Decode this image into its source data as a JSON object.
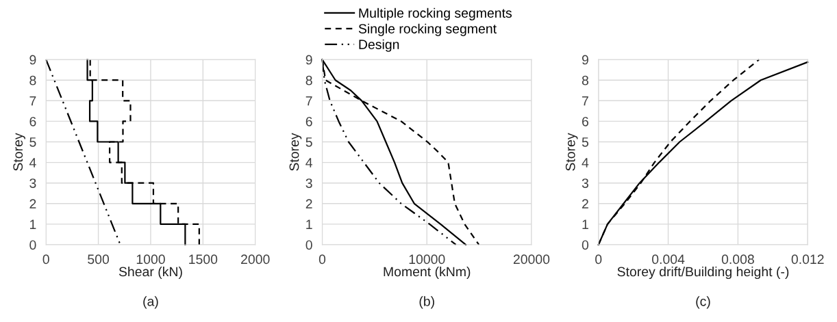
{
  "chart_data": [
    {
      "type": "line",
      "xlabel": "Shear (kN)",
      "ylabel": "Storey",
      "xlim": [
        0,
        2000
      ],
      "xticks": [
        0,
        500,
        1000,
        1500,
        2000
      ],
      "ylim": [
        0,
        9
      ],
      "yticks": [
        0,
        1,
        2,
        3,
        4,
        5,
        6,
        7,
        8,
        9
      ],
      "grid": true,
      "annotations": [
        "(a)"
      ],
      "series": [
        {
          "color": "#000000",
          "line_style": "solid",
          "x": [
            395,
            395,
            443,
            443,
            418,
            418,
            492,
            492,
            690,
            690,
            754,
            754,
            826,
            826,
            1094,
            1094,
            1330,
            1330
          ],
          "values": [
            9,
            8,
            8,
            7,
            7,
            6,
            6,
            5,
            5,
            4,
            4,
            3,
            3,
            2,
            2,
            1,
            1,
            0
          ]
        },
        {
          "color": "#000000",
          "line_style": "dashed",
          "x": [
            422,
            422,
            733,
            733,
            807,
            807,
            735,
            735,
            608,
            608,
            724,
            724,
            1026,
            1026,
            1263,
            1263,
            1464,
            1464
          ],
          "values": [
            9,
            8,
            8,
            7,
            7,
            6,
            6,
            5,
            5,
            4,
            4,
            3,
            3,
            2,
            2,
            1,
            1,
            0
          ]
        },
        {
          "color": "#000000",
          "line_style": "dashdot",
          "x": [
            0,
            710
          ],
          "values": [
            9,
            0
          ]
        }
      ]
    },
    {
      "type": "line",
      "xlabel": "Moment (kNm)",
      "ylabel": "Storey",
      "xlim": [
        0,
        20000
      ],
      "xticks": [
        0,
        10000,
        20000
      ],
      "ylim": [
        0,
        9
      ],
      "yticks": [
        0,
        1,
        2,
        3,
        4,
        5,
        6,
        7,
        8,
        9
      ],
      "grid": true,
      "legend": "top",
      "annotations": [
        "(b)"
      ],
      "series": [
        {
          "name": "Multiple rocking segments",
          "color": "#000000",
          "line_style": "solid",
          "x": [
            0,
            1256,
            2720,
            3770,
            5235,
            6073,
            6910,
            7643,
            8795,
            10050,
            11308,
            13716
          ],
          "values": [
            9,
            8,
            7.5,
            7,
            6,
            5,
            4,
            3,
            2,
            1.5,
            1,
            0
          ]
        },
        {
          "name": "Single rocking segment",
          "color": "#000000",
          "line_style": "dashed",
          "x": [
            0,
            314,
            3770,
            7539,
            10052,
            11100,
            12041,
            12355,
            12670,
            13611,
            14973
          ],
          "values": [
            9,
            8,
            7,
            6,
            5,
            4.5,
            4,
            3,
            2,
            1,
            0
          ]
        },
        {
          "name": "Design",
          "color": "#000000",
          "line_style": "dashdot",
          "x": [
            0,
            209,
            733,
            1570,
            2513,
            3979,
            5444,
            7539,
            10261,
            12774
          ],
          "values": [
            9,
            8,
            7,
            6,
            5,
            4,
            3,
            2,
            1,
            0
          ]
        }
      ]
    },
    {
      "type": "line",
      "xlabel": "Storey drift/Building height (-)",
      "ylabel": "Storey",
      "xlim": [
        0,
        0.012
      ],
      "xticks": [
        0,
        0.004,
        0.008,
        0.012
      ],
      "ylim": [
        0,
        9
      ],
      "yticks": [
        0,
        1,
        2,
        3,
        4,
        5,
        6,
        7,
        8,
        9
      ],
      "grid": true,
      "annotations": [
        "(c)"
      ],
      "series": [
        {
          "color": "#000000",
          "line_style": "solid",
          "x": [
            0,
            0.00052,
            0.00144,
            0.00236,
            0.00348,
            0.00466,
            0.00616,
            0.00761,
            0.00931,
            0.012
          ],
          "values": [
            0,
            1,
            2,
            3,
            4,
            5,
            6,
            7,
            8,
            8.88
          ]
        },
        {
          "color": "#000000",
          "line_style": "dashed",
          "x": [
            0,
            0.00052,
            0.00151,
            0.00243,
            0.00321,
            0.00413,
            0.00525,
            0.00643,
            0.00774,
            0.00921
          ],
          "values": [
            0,
            1,
            2,
            3,
            4,
            5,
            6,
            7,
            8,
            9
          ]
        }
      ]
    }
  ]
}
